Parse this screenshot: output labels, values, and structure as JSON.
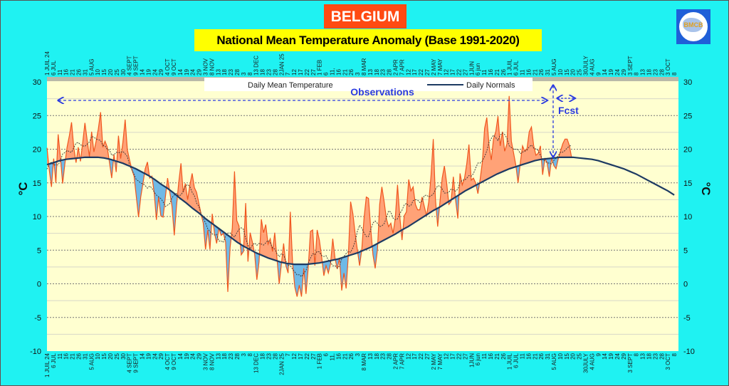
{
  "title": "BELGIUM",
  "subtitle": "National Mean Temperature Anomaly (Base 1991-2020)",
  "logo": {
    "text": "BMCB"
  },
  "chart_data": {
    "type": "area",
    "ylabel": "°C",
    "ylim": [
      -10,
      30
    ],
    "y_ticks": [
      30,
      25,
      20,
      15,
      10,
      5,
      0,
      -5,
      -10
    ],
    "grid": true,
    "legend_position": "top",
    "legend": [
      "Daily Mean Temperature",
      "Daily Normals"
    ],
    "annotations": {
      "observations": "Observations",
      "forecast": "Fcst"
    },
    "colors": {
      "above_normal_fill": "#ffa277",
      "below_normal_fill": "#6fb9e6",
      "temperature_line": "#f0561e",
      "normals_line": "#1d3a62",
      "annotation": "#2a3ae0",
      "plot_background": "#ffffd0",
      "page_background": "#1ff2f2"
    },
    "x_tick_labels": [
      "1 JUIL 24",
      "6 JUL",
      "11",
      "16",
      "21",
      "26",
      "31",
      "5 AUG",
      "10",
      "15",
      "20",
      "25",
      "30",
      "4 SEPT",
      "9 SEPT",
      "14",
      "19",
      "24",
      "29",
      "4 OCT",
      "9 OCT",
      "14",
      "19",
      "24",
      "29",
      "3 NOV",
      "8 NOV",
      "13",
      "18",
      "23",
      "28",
      "3",
      "8",
      "13 DEC",
      "18",
      "23",
      "28",
      "2JAN 25",
      "7",
      "12",
      "17",
      "22",
      "27",
      "1 FEB",
      "6",
      "11,",
      "16",
      "21",
      "26",
      "3",
      "8 MAR",
      "13",
      "18",
      "23",
      "28",
      "2 APR",
      "7 APR",
      "12",
      "17",
      "22",
      "27",
      "2 MAY",
      "7 MAY",
      "12",
      "17",
      "22",
      "27",
      "1JUN",
      "6 jun",
      "11",
      "16",
      "21",
      "26",
      "1 JUIL",
      "6 JUL",
      "11",
      "16",
      "21",
      "26",
      "31",
      "5 AUG",
      "10",
      "15",
      "20",
      "25",
      "30JULY",
      "4 AUG",
      "9",
      "14",
      "19",
      "24",
      "29",
      "3 SEPT",
      "8",
      "13",
      "18",
      "23",
      "28",
      "3 OCT",
      "8"
    ],
    "series": [
      {
        "name": "Daily Mean Temperature",
        "values": [
          20.2,
          17,
          14.4,
          18.6,
          15,
          22.2,
          18.9,
          14.9,
          17.8,
          20.3,
          22,
          24,
          20.3,
          18,
          20.3,
          18.2,
          21,
          23.9,
          21.3,
          18.9,
          22.6,
          19.6,
          21.2,
          23,
          25.5,
          20.3,
          21.2,
          20.3,
          18,
          15.7,
          19.2,
          16.6,
          22,
          18.6,
          21,
          24.4,
          19.9,
          18.4,
          17,
          16,
          13,
          9.9,
          12.9,
          15,
          17.1,
          18.1,
          15.7,
          16,
          13.6,
          9.5,
          12.9,
          10.1,
          9.9,
          12.8,
          15.7,
          13.6,
          11.5,
          7.2,
          11.5,
          15,
          17.9,
          13.6,
          14.9,
          12.5,
          14.7,
          16.4,
          14.3,
          13.6,
          12,
          10.4,
          9,
          5.1,
          8,
          5.1,
          10.4,
          7.6,
          6,
          8.3,
          7.2,
          7.5,
          6.2,
          -1.2,
          5.4,
          8.3,
          16.7,
          9.4,
          8.6,
          4.3,
          4.8,
          12,
          3.3,
          7.6,
          6.2,
          4.4,
          0.6,
          3.3,
          9.6,
          7.6,
          8.8,
          5.9,
          6.7,
          4.8,
          7.6,
          3.8,
          0,
          3,
          6,
          2.7,
          1.6,
          10.7,
          3,
          -0.5,
          -1.9,
          -0.2,
          -1.9,
          2.3,
          -1.5,
          2.3,
          7.8,
          8,
          2.7,
          8,
          6.5,
          4.1,
          1.2,
          2.7,
          1.6,
          3,
          6.7,
          3.8,
          2.2,
          3.8,
          -1,
          1.6,
          -0.7,
          4.4,
          12.2,
          10.4,
          7.5,
          5.1,
          2.7,
          5.1,
          9.7,
          12.9,
          12.7,
          8.3,
          4.3,
          2.3,
          5.1,
          11.8,
          14.4,
          12.2,
          9.7,
          8.5,
          9,
          7.5,
          9.7,
          14.7,
          10.1,
          6.5,
          10.1,
          10.7,
          15.5,
          13.8,
          14.4,
          11.8,
          11,
          11,
          12.9,
          11.5,
          10.1,
          12.2,
          16,
          21.5,
          12.5,
          8.5,
          12.2,
          15.7,
          17.5,
          15,
          11.8,
          12.2,
          15.9,
          12.5,
          9.7,
          16.4,
          14.7,
          15.7,
          17.8,
          20.7,
          15.4,
          15.7,
          15,
          13.4,
          15.5,
          18.1,
          23.1,
          24.7,
          20.5,
          18.4,
          21.5,
          22.6,
          24.9,
          20.5,
          22.6,
          19.7,
          20.8,
          27.9,
          21.2,
          19.4,
          17.6,
          15,
          18,
          20.5,
          19.7,
          20.1,
          22.6,
          23.3,
          20.5,
          19.1,
          19.4,
          20.5,
          16.2,
          18.6,
          18,
          15.9,
          18.7,
          17.6,
          17.1,
          18.6,
          19.7,
          20.8,
          21.5,
          21.5,
          20.5,
          18.7
        ]
      },
      {
        "name": "Daily Normals",
        "values": [
          17.7,
          18.0,
          18.3,
          18.5,
          18.6,
          18.7,
          18.8,
          18.8,
          18.8,
          18.7,
          18.5,
          18.2,
          17.9,
          17.5,
          17.1,
          16.6,
          16.1,
          15.5,
          14.8,
          14.2,
          13.5,
          12.7,
          12.0,
          11.2,
          10.5,
          9.7,
          9.0,
          8.3,
          7.6,
          6.9,
          6.2,
          5.6,
          5.1,
          4.6,
          4.2,
          3.8,
          3.5,
          3.2,
          3.0,
          2.9,
          2.9,
          2.9,
          3.0,
          3.1,
          3.3,
          3.5,
          3.7,
          4.0,
          4.3,
          4.6,
          5.0,
          5.4,
          5.9,
          6.4,
          6.9,
          7.4,
          8.0,
          8.5,
          9.1,
          9.7,
          10.3,
          10.9,
          11.4,
          12.0,
          12.6,
          13.2,
          13.8,
          14.3,
          14.8,
          15.3,
          15.8,
          16.3,
          16.7,
          17.1,
          17.4,
          17.7,
          18.0,
          18.3,
          18.5,
          18.6,
          18.7,
          18.8,
          18.8,
          18.8,
          18.7,
          18.6,
          18.5,
          18.3,
          18.0,
          17.7,
          17.4,
          17.1,
          16.7,
          16.3,
          15.8,
          15.3,
          14.8,
          14.3,
          13.8,
          13.2
        ]
      }
    ]
  }
}
